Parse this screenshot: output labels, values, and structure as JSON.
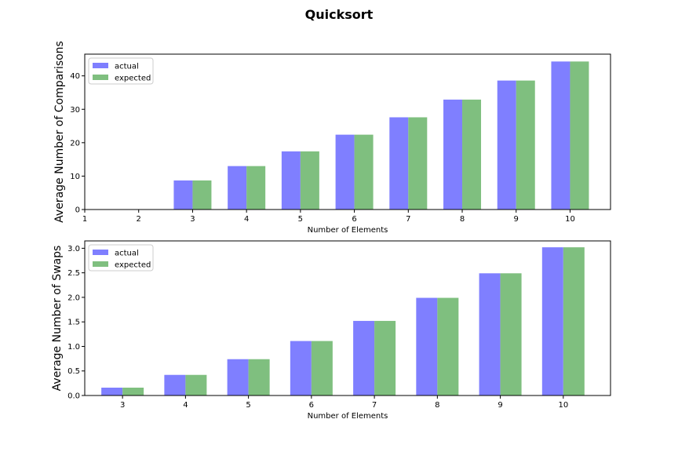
{
  "figure": {
    "title": "Quicksort"
  },
  "chart_data": [
    {
      "type": "bar",
      "title": "",
      "xlabel": "Number of Elements",
      "ylabel": "Average Number of Comparisons",
      "x_ticks": [
        1,
        2,
        3,
        4,
        5,
        6,
        7,
        8,
        9,
        10
      ],
      "xlim": [
        1,
        10.75
      ],
      "ylim": [
        0,
        46.5
      ],
      "y_ticks": [
        0,
        10,
        20,
        30,
        40
      ],
      "categories": [
        3,
        4,
        5,
        6,
        7,
        8,
        9,
        10
      ],
      "series": [
        {
          "name": "actual",
          "color": "#7f7fff",
          "values": [
            8.7,
            13.0,
            17.4,
            22.4,
            27.6,
            32.9,
            38.6,
            44.3
          ]
        },
        {
          "name": "expected",
          "color": "#7fbf7f",
          "values": [
            8.7,
            13.0,
            17.4,
            22.4,
            27.6,
            32.9,
            38.6,
            44.3
          ]
        }
      ],
      "grid": false,
      "legend": "upper-left"
    },
    {
      "type": "bar",
      "title": "",
      "xlabel": "Number of Elements",
      "ylabel": "Average Number of Swaps",
      "x_ticks": [
        3,
        4,
        5,
        6,
        7,
        8,
        9,
        10
      ],
      "xlim": [
        2.4,
        10.75
      ],
      "ylim": [
        0,
        3.15
      ],
      "y_ticks": [
        0.0,
        0.5,
        1.0,
        1.5,
        2.0,
        2.5,
        3.0
      ],
      "y_tick_labels": [
        "0.0",
        "0.5",
        "1.0",
        "1.5",
        "2.0",
        "2.5",
        "3.0"
      ],
      "categories": [
        3,
        4,
        5,
        6,
        7,
        8,
        9,
        10
      ],
      "series": [
        {
          "name": "actual",
          "color": "#7f7fff",
          "values": [
            0.16,
            0.42,
            0.74,
            1.11,
            1.52,
            1.99,
            2.49,
            3.02
          ]
        },
        {
          "name": "expected",
          "color": "#7fbf7f",
          "values": [
            0.16,
            0.42,
            0.74,
            1.11,
            1.52,
            1.99,
            2.49,
            3.02
          ]
        }
      ],
      "grid": false,
      "legend": "upper-left"
    }
  ]
}
